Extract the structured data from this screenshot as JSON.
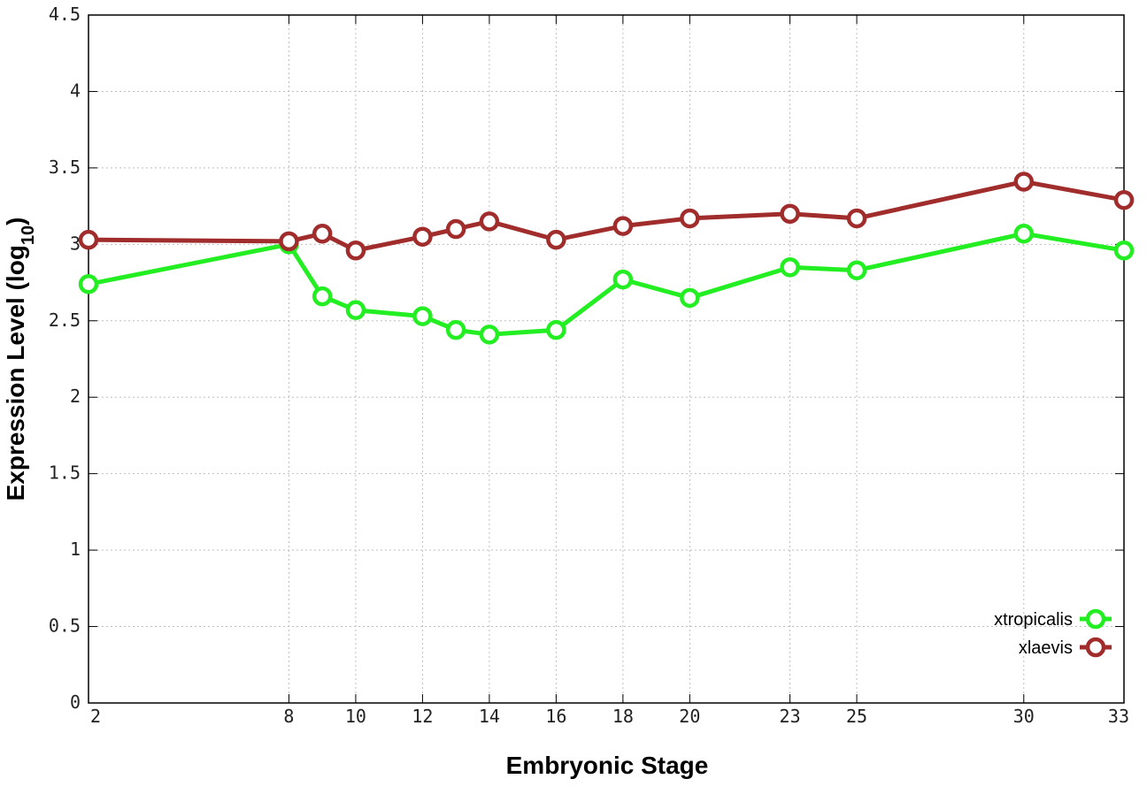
{
  "chart_data": {
    "type": "line",
    "title": "",
    "xlabel": "Embryonic Stage",
    "ylabel_main": "Expression Level (log",
    "ylabel_sub": "10",
    "ylabel_close": ")",
    "xlim": [
      2,
      33
    ],
    "ylim": [
      0,
      4.5
    ],
    "grid": true,
    "legend_position": "bottom-right",
    "x_ticks": [
      2,
      8,
      10,
      12,
      14,
      16,
      18,
      20,
      23,
      25,
      30,
      33
    ],
    "y_ticks": [
      0,
      0.5,
      1,
      1.5,
      2,
      2.5,
      3,
      3.5,
      4,
      4.5
    ],
    "y_tick_labels": [
      "0",
      "0.5",
      "1",
      "1.5",
      "2",
      "2.5",
      "3",
      "3.5",
      "4",
      "4.5"
    ],
    "series": [
      {
        "name": "xtropicalis",
        "color": "#22ee22",
        "x": [
          2,
          8,
          9,
          10,
          12,
          13,
          14,
          16,
          18,
          20,
          23,
          25,
          30,
          33
        ],
        "y": [
          2.74,
          3.0,
          2.66,
          2.57,
          2.53,
          2.44,
          2.41,
          2.44,
          2.77,
          2.65,
          2.85,
          2.83,
          3.07,
          2.96
        ]
      },
      {
        "name": "xlaevis",
        "color": "#a02c2c",
        "x": [
          2,
          8,
          9,
          10,
          12,
          13,
          14,
          16,
          18,
          20,
          23,
          25,
          30,
          33
        ],
        "y": [
          3.03,
          3.02,
          3.07,
          2.96,
          3.05,
          3.1,
          3.15,
          3.03,
          3.12,
          3.17,
          3.2,
          3.17,
          3.41,
          3.29
        ]
      }
    ]
  }
}
